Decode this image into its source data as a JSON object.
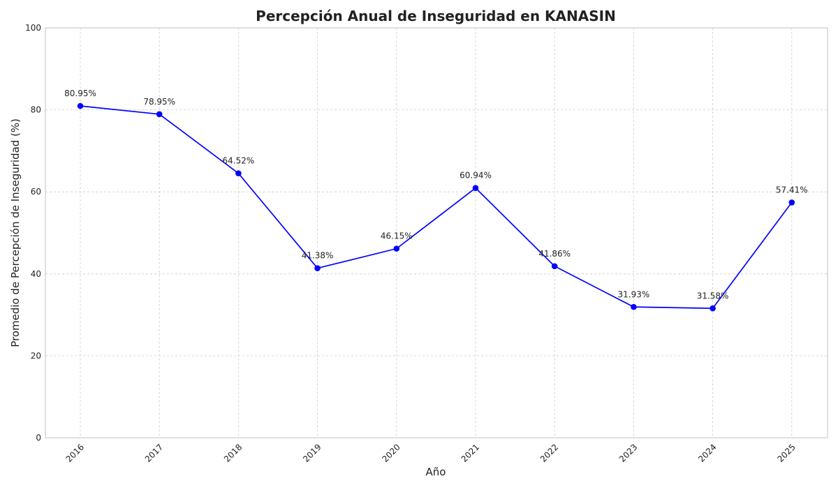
{
  "chart_data": {
    "type": "line",
    "title": "Percepción Anual de Inseguridad en KANASIN",
    "xlabel": "Año",
    "ylabel": "Promedio de Percepción de Inseguridad (%)",
    "categories": [
      "2016",
      "2017",
      "2018",
      "2019",
      "2020",
      "2021",
      "2022",
      "2023",
      "2024",
      "2025"
    ],
    "series": [
      {
        "values": [
          80.95,
          78.95,
          64.52,
          41.38,
          46.15,
          60.94,
          41.86,
          31.93,
          31.58,
          57.41
        ],
        "labels": [
          "80.95%",
          "78.95%",
          "64.52%",
          "41.38%",
          "46.15%",
          "60.94%",
          "41.86%",
          "31.93%",
          "31.58%",
          "57.41%"
        ],
        "color": "#0000ff",
        "marker": "circle"
      }
    ],
    "yticks": [
      "0",
      "20",
      "40",
      "60",
      "80",
      "100"
    ],
    "ylim": [
      0,
      100
    ],
    "grid": true,
    "legend": "none"
  }
}
